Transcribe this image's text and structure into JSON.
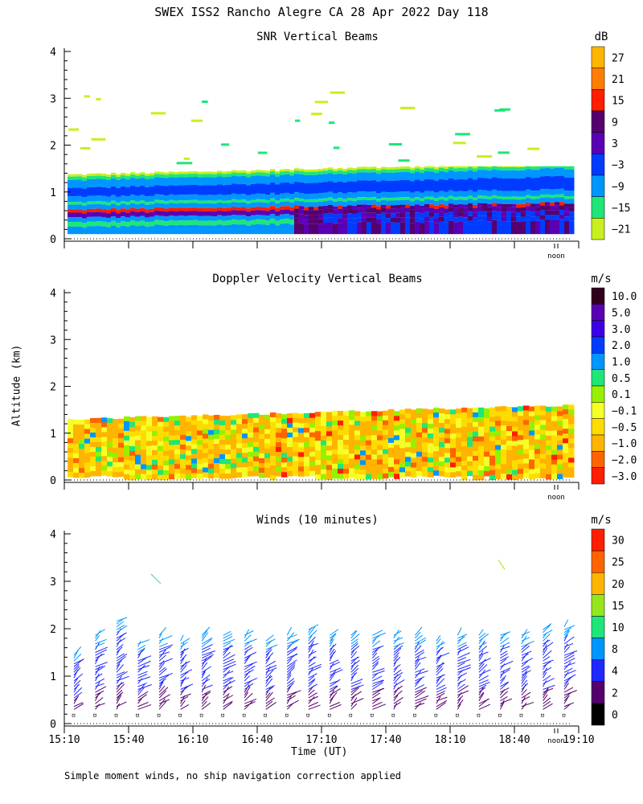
{
  "title": "SWEX ISS2 Rancho Alegre CA  28 Apr 2022 Day 118",
  "footnote": "Simple moment winds, no ship navigation correction applied",
  "y_axis_label": "Altitude (km)",
  "x_axis_label": "Time (UT)",
  "noon_label": "noon",
  "chart_data": [
    {
      "type": "heatmap",
      "title": "SNR Vertical Beams",
      "unit": "dB",
      "ylim": [
        0,
        4
      ],
      "yticks": [
        "0",
        "1",
        "2",
        "3",
        "4"
      ],
      "x_range": [
        "15:10",
        "19:10"
      ],
      "noon_marker_time": "19:00",
      "colorbar": {
        "labels": [
          "27",
          "21",
          "15",
          "9",
          "3",
          "−3",
          "−9",
          "−15",
          "−21"
        ],
        "colors": [
          "#ffb400",
          "#ff7d00",
          "#ff1e00",
          "#55006e",
          "#5a00b4",
          "#003cff",
          "#0096ff",
          "#1ee678",
          "#c8f01e"
        ]
      },
      "layers": [
        {
          "description_band": "top",
          "color": "#c8f01e",
          "altitude_top_km": 1.35
        },
        {
          "color": "#1ee678",
          "altitude_top_km": 1.25
        },
        {
          "color": "#0096ff",
          "altitude_top_km": 1.15
        },
        {
          "color": "#003cff",
          "altitude_top_km": 1.0
        },
        {
          "color": "#5a00b4",
          "altitude_top_km": 0.7
        },
        {
          "color": "#55006e",
          "altitude_top_km": 0.55
        },
        {
          "color": "#ff1e00",
          "altitude_top_km": 0.5
        }
      ]
    },
    {
      "type": "heatmap",
      "title": "Doppler Velocity Vertical Beams",
      "unit": "m/s",
      "ylim": [
        0,
        4
      ],
      "yticks": [
        "0",
        "1",
        "2",
        "3",
        "4"
      ],
      "x_range": [
        "15:10",
        "19:10"
      ],
      "noon_marker_time": "19:00",
      "colorbar": {
        "labels": [
          "10.0",
          "5.0",
          "3.0",
          "2.0",
          "1.0",
          "0.5",
          "0.1",
          "−0.1",
          "−0.5",
          "−1.0",
          "−2.0",
          "−3.0"
        ],
        "colors": [
          "#32001e",
          "#5a00b4",
          "#3c00e6",
          "#003cff",
          "#0096ff",
          "#1ee678",
          "#96f000",
          "#f5ff28",
          "#ffdc00",
          "#ffb400",
          "#ff6400",
          "#ff1e00"
        ]
      },
      "data_top_km": 1.3
    },
    {
      "type": "scatter",
      "title": "Winds (10 minutes)",
      "unit": "m/s",
      "ylim": [
        0,
        4
      ],
      "yticks": [
        "0",
        "1",
        "2",
        "3",
        "4"
      ],
      "xticks": [
        "15:10",
        "15:40",
        "16:10",
        "16:40",
        "17:10",
        "17:40",
        "18:10",
        "18:40",
        "19:10"
      ],
      "noon_marker_time": "19:00",
      "colorbar": {
        "labels": [
          "30",
          "25",
          "20",
          "15",
          "10",
          "8",
          "4",
          "2",
          "0"
        ],
        "colors": [
          "#ff1e00",
          "#ff6400",
          "#ffb400",
          "#96e61e",
          "#1ee678",
          "#0096ff",
          "#1e28ff",
          "#55006e",
          "#000000"
        ]
      },
      "profiles_times": [
        "15:10",
        "15:20",
        "15:30",
        "15:40",
        "15:50",
        "16:00",
        "16:10",
        "16:20",
        "16:30",
        "16:40",
        "16:50",
        "17:00",
        "17:10",
        "17:20",
        "17:30",
        "17:40",
        "17:50",
        "18:00",
        "18:10",
        "18:20",
        "18:30",
        "18:40",
        "18:50",
        "19:00"
      ],
      "profile_top_km": [
        1.5,
        1.9,
        2.2,
        1.7,
        1.9,
        1.8,
        1.9,
        1.9,
        1.9,
        1.8,
        1.9,
        2.0,
        1.9,
        1.9,
        1.9,
        1.9,
        1.9,
        1.8,
        1.9,
        1.9,
        1.9,
        1.9,
        2.0,
        2.1
      ]
    }
  ]
}
